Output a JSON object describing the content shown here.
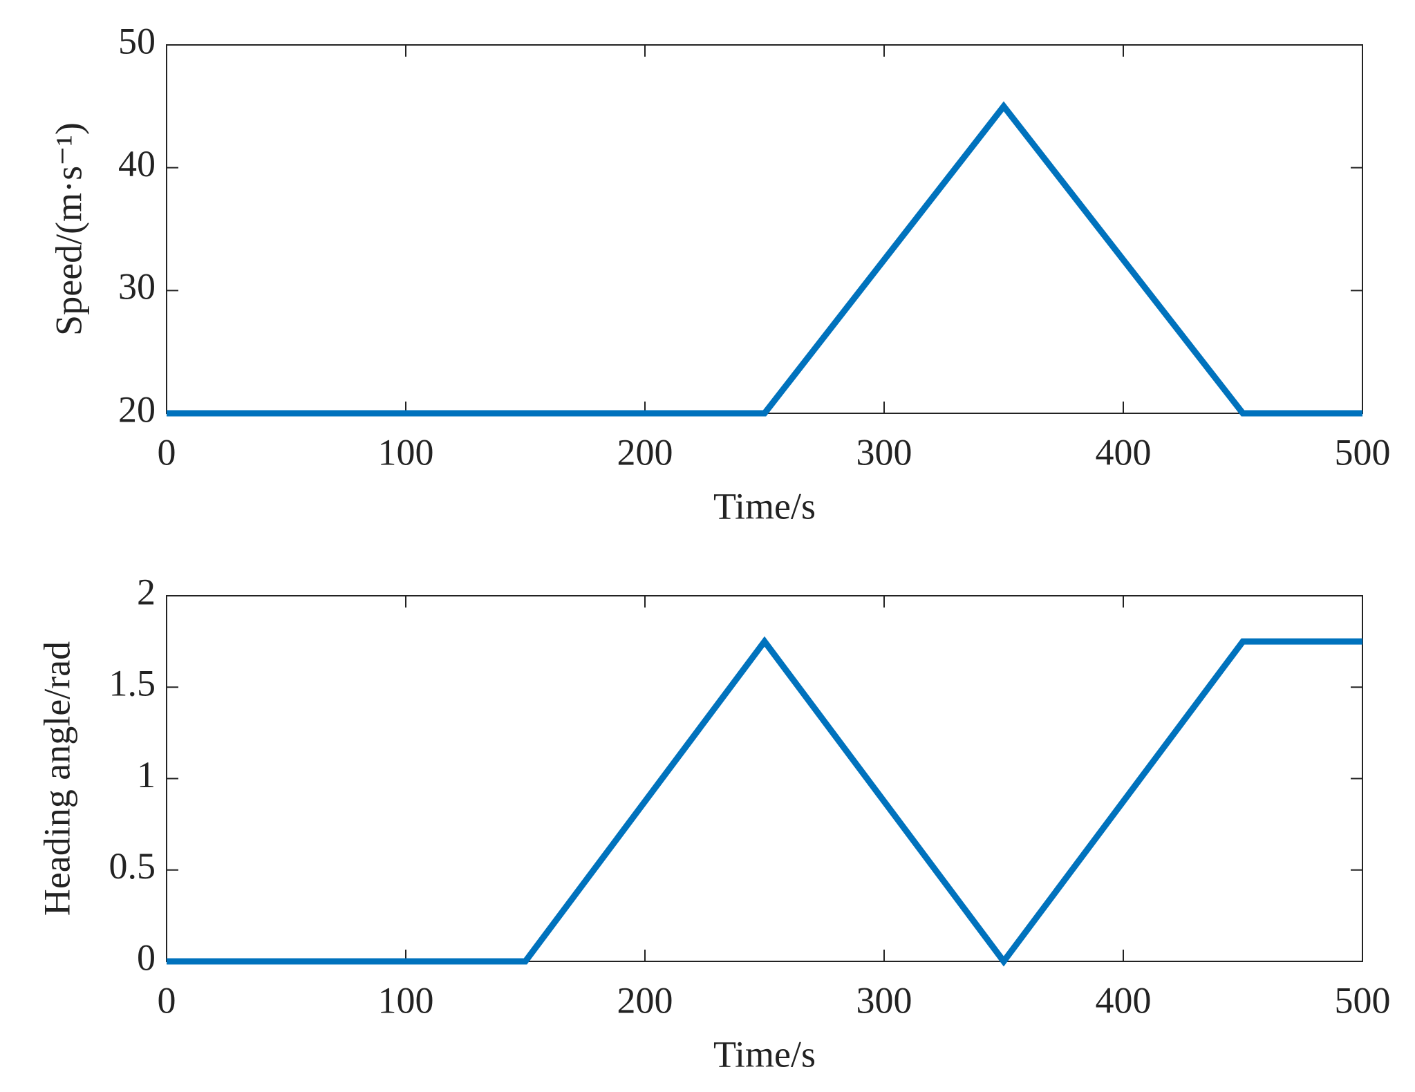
{
  "chart_data": [
    {
      "type": "line",
      "xlabel": "Time/s",
      "ylabel": "Speed/(m·s⁻¹)",
      "x": [
        0,
        250,
        350,
        450,
        500
      ],
      "series": [
        {
          "color": "#0072bd",
          "values": [
            20,
            20,
            45,
            20,
            20
          ]
        }
      ],
      "xlim": [
        0,
        500
      ],
      "xticks": [
        0,
        100,
        200,
        300,
        400,
        500
      ],
      "ylim": [
        20,
        50
      ],
      "yticks": [
        20,
        30,
        40,
        50
      ],
      "grid": false
    },
    {
      "type": "line",
      "xlabel": "Time/s",
      "ylabel": "Heading angle/rad",
      "x": [
        0,
        150,
        250,
        350,
        450,
        500
      ],
      "series": [
        {
          "color": "#0072bd",
          "values": [
            0,
            0,
            1.75,
            0,
            1.75,
            1.75
          ]
        }
      ],
      "xlim": [
        0,
        500
      ],
      "xticks": [
        0,
        100,
        200,
        300,
        400,
        500
      ],
      "ylim": [
        0,
        2
      ],
      "yticks": [
        0,
        0.5,
        1,
        1.5,
        2
      ],
      "grid": false
    }
  ]
}
